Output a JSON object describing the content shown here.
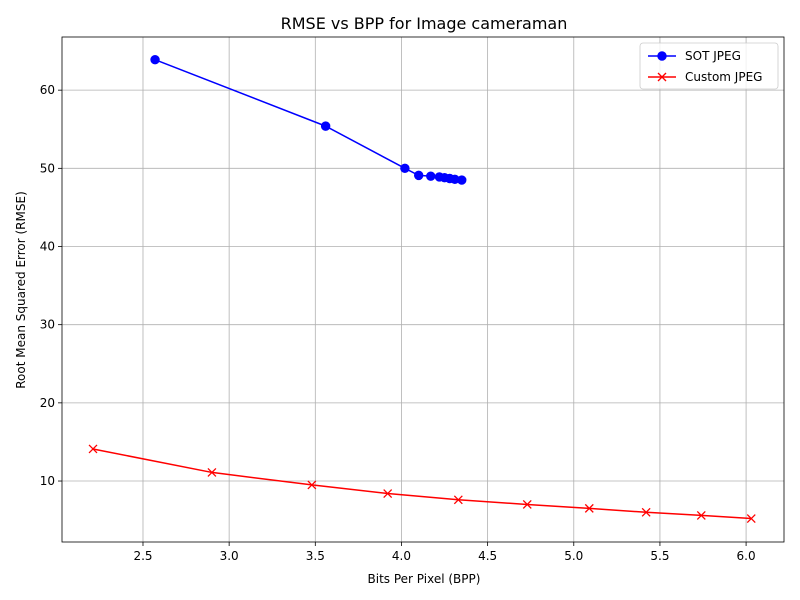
{
  "chart_data": {
    "type": "line",
    "title": "RMSE vs BPP for Image cameraman",
    "xlabel": "Bits Per Pixel (BPP)",
    "ylabel": "Root Mean Squared Error (RMSE)",
    "xlim": [
      2.03,
      6.22
    ],
    "ylim": [
      2.2,
      66.8
    ],
    "xticks": [
      "2.5",
      "3.0",
      "3.5",
      "4.0",
      "4.5",
      "5.0",
      "5.5",
      "6.0"
    ],
    "yticks": [
      "10",
      "20",
      "30",
      "40",
      "50",
      "60"
    ],
    "grid": true,
    "legend_position": "top-right",
    "series": [
      {
        "name": "SOT JPEG",
        "color": "#0000ff",
        "marker": "circle",
        "x": [
          2.57,
          3.56,
          4.02,
          4.1,
          4.17,
          4.22,
          4.25,
          4.28,
          4.31,
          4.35
        ],
        "y": [
          63.9,
          55.4,
          50.0,
          49.1,
          49.0,
          48.9,
          48.8,
          48.7,
          48.6,
          48.5
        ]
      },
      {
        "name": "Custom JPEG",
        "color": "#ff0000",
        "marker": "x",
        "x": [
          2.21,
          2.9,
          3.48,
          3.92,
          4.33,
          4.73,
          5.09,
          5.42,
          5.74,
          6.03
        ],
        "y": [
          14.1,
          11.1,
          9.5,
          8.4,
          7.6,
          7.0,
          6.5,
          6.0,
          5.6,
          5.2
        ]
      }
    ]
  }
}
